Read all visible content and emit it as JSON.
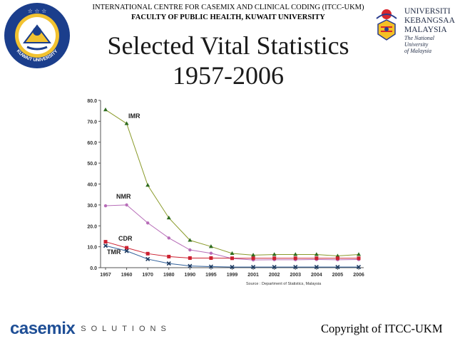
{
  "header": {
    "line1": "INTERNATIONAL CENTRE FOR CASEMIX AND CLINICAL CODING (ITCC-UKM)",
    "line2": "FACULTY OF PUBLIC HEALTH, KUWAIT UNIVERSITY"
  },
  "title": {
    "line1": "Selected Vital Statistics",
    "line2": "1957-2006"
  },
  "logos": {
    "kuwait_ring_text": "KUWAIT UNIVERSITY",
    "ukm_line1": "UNIVERSITI",
    "ukm_line2": "KEBANGSAAN",
    "ukm_line3": "MALAYSIA",
    "ukm_tagline1": "The National University",
    "ukm_tagline2": "of Malaysia"
  },
  "footer": {
    "brand": "casemix",
    "brand_suffix": "SOLUTIONS",
    "copyright": "Copyright of ITCC-UKM"
  },
  "chart_data": {
    "type": "line",
    "categories": [
      "1957",
      "1960",
      "1970",
      "1980",
      "1990",
      "1995",
      "1999",
      "2001",
      "2002",
      "2003",
      "2004",
      "2005",
      "2006"
    ],
    "yticks": [
      "0.0",
      "10.0",
      "20.0",
      "30.0",
      "40.0",
      "50.0",
      "60.0",
      "70.0",
      "80.0"
    ],
    "ylim": [
      0,
      80
    ],
    "source": "Source : Department of Statistics, Malaysia",
    "series": [
      {
        "name": "IMR",
        "color": "#8a9a2a",
        "marker": "triangle",
        "values": [
          75.5,
          68.9,
          39.4,
          23.8,
          13.1,
          10.1,
          6.8,
          6.0,
          6.3,
          6.3,
          6.3,
          5.6,
          6.3
        ]
      },
      {
        "name": "NMR",
        "color": "#b76db8",
        "marker": "circle",
        "values": [
          29.6,
          30.0,
          21.4,
          14.2,
          8.5,
          6.9,
          4.4,
          3.7,
          3.8,
          3.8,
          3.9,
          3.8,
          3.9
        ]
      },
      {
        "name": "CDR",
        "color": "#cc2030",
        "marker": "square",
        "values": [
          12.4,
          9.5,
          6.7,
          5.3,
          4.6,
          4.6,
          4.5,
          4.5,
          4.5,
          4.5,
          4.5,
          4.5,
          4.5
        ]
      },
      {
        "name": "TMR",
        "color": "#2f5f9a",
        "marker": "x",
        "values": [
          10.5,
          8.0,
          4.1,
          2.0,
          0.8,
          0.5,
          0.3,
          0.3,
          0.3,
          0.3,
          0.3,
          0.3,
          0.3
        ]
      }
    ]
  }
}
